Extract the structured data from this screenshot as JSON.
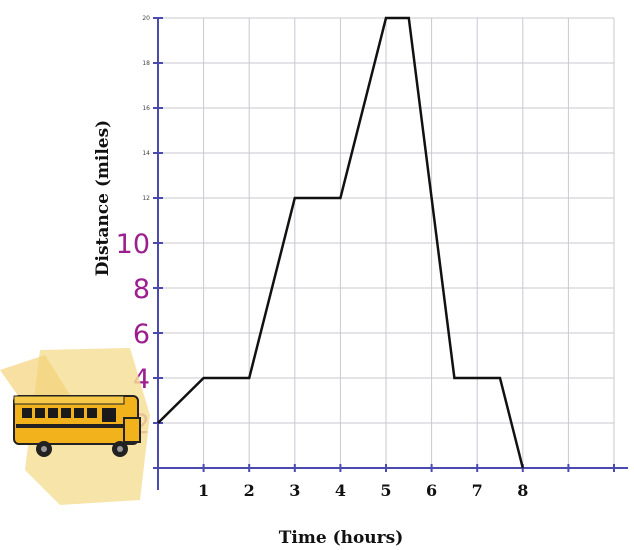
{
  "chart_data": {
    "type": "line",
    "xlabel": "Time (hours)",
    "ylabel": "Distance (miles)",
    "xlim": [
      0,
      10
    ],
    "ylim": [
      0,
      20
    ],
    "x_tick_labels": [
      "1",
      "2",
      "3",
      "4",
      "5",
      "6",
      "7",
      "8"
    ],
    "y_ticks_handwritten": [
      "2",
      "4",
      "6",
      "8",
      "10"
    ],
    "y_ticks_printed": [
      "12",
      "14",
      "16",
      "18",
      "20"
    ],
    "grid": true,
    "series": [
      {
        "x": [
          0,
          1,
          2,
          3,
          4,
          5,
          5.5,
          6.5,
          7.5,
          8
        ],
        "y": [
          2,
          4,
          4,
          12,
          12,
          20,
          20,
          4,
          4,
          0
        ]
      }
    ],
    "colors": {
      "grid": "#c8c8d2",
      "axis": "#4a4ab0",
      "tick_ink": "#9b1f8f",
      "line": "#111111"
    },
    "icons": [
      "school-bus-icon"
    ]
  }
}
